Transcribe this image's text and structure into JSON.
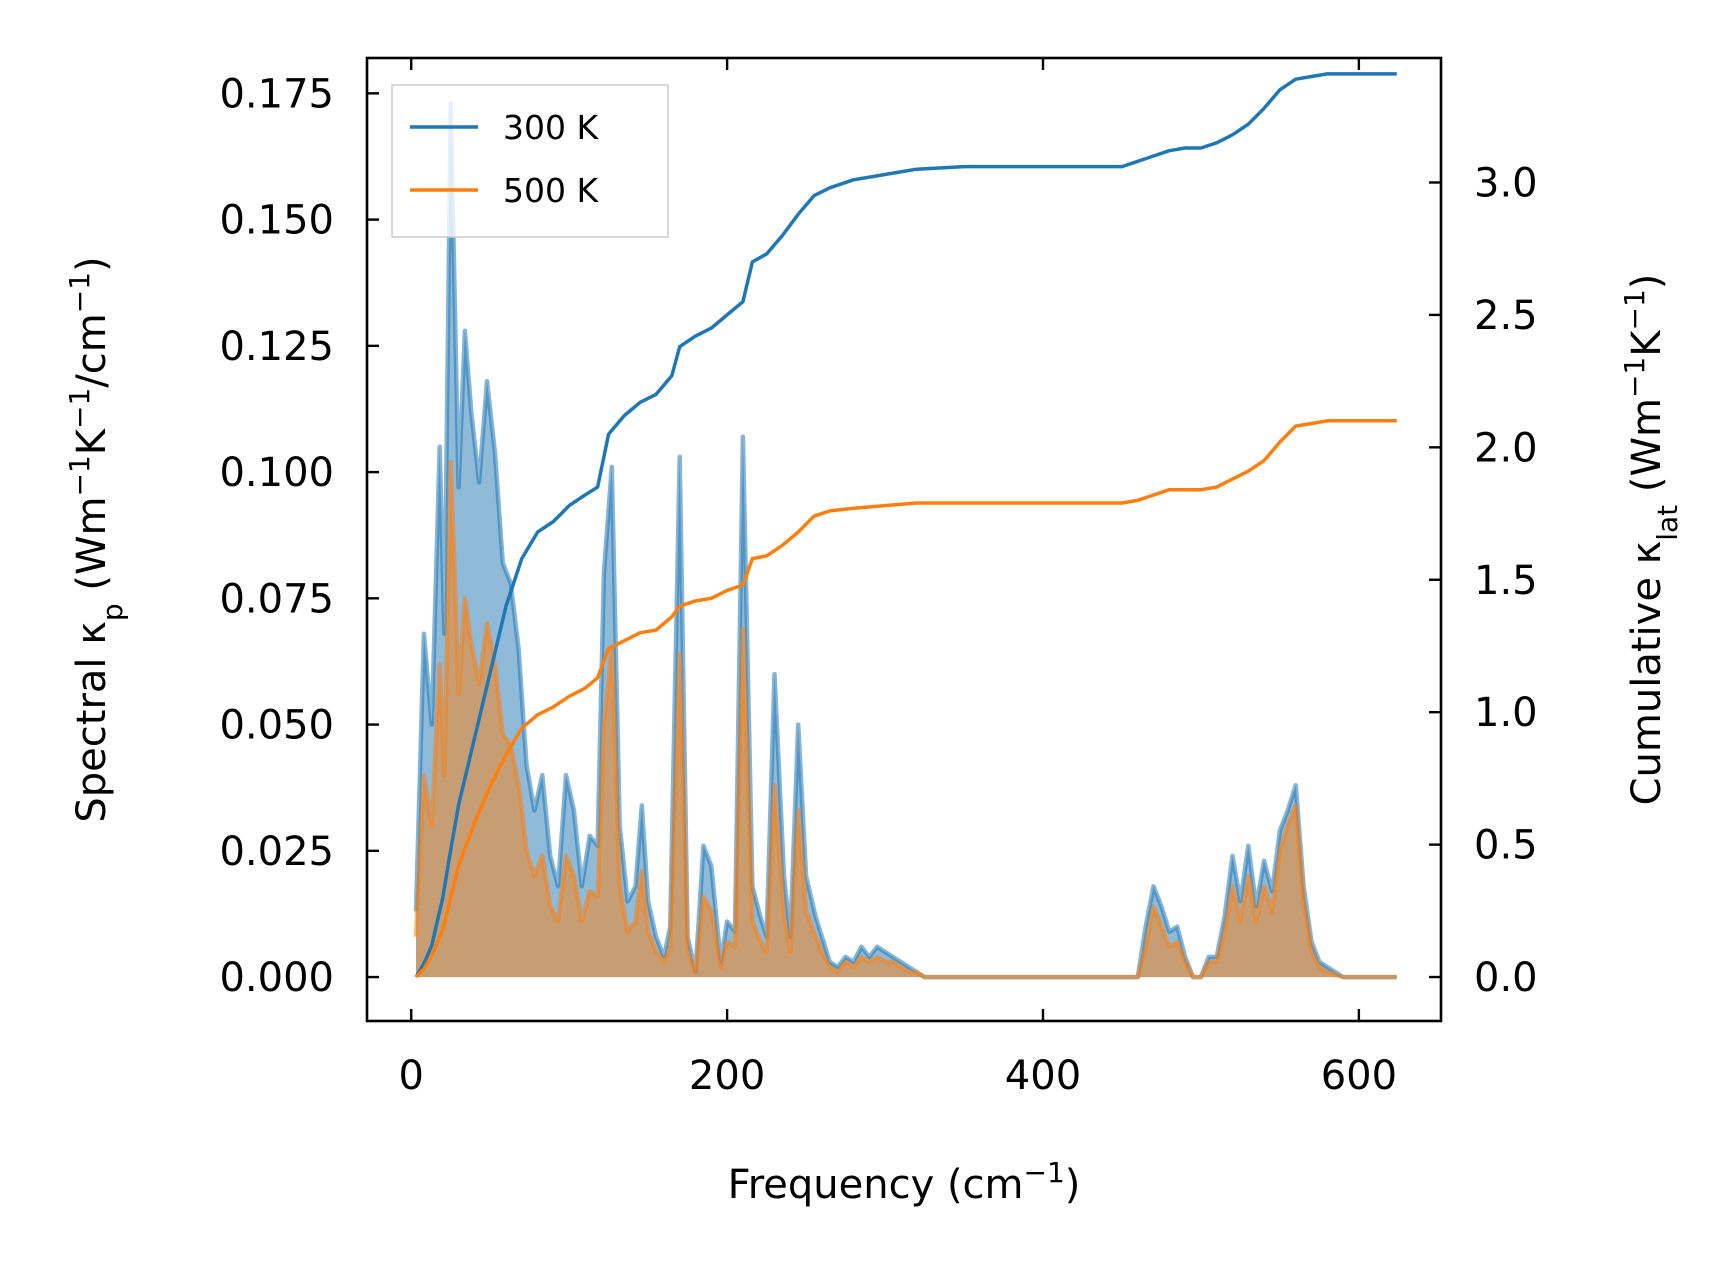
{
  "chart_data": {
    "type": "area",
    "x_axis": {
      "label": "Frequency (cm⁻¹)",
      "label_parts": [
        {
          "text": "Frequency (cm"
        },
        {
          "text": "−1",
          "sup": true
        },
        {
          "text": ")"
        }
      ],
      "range": [
        -28,
        652
      ],
      "ticks": [
        0,
        200,
        400,
        600
      ],
      "tick_labels": [
        "0",
        "200",
        "400",
        "600"
      ]
    },
    "y_left_axis": {
      "label": "Spectral κₚ (Wm⁻¹K⁻¹/cm⁻¹)",
      "label_parts": [
        {
          "text": "Spectral κ"
        },
        {
          "text": "p",
          "sub": true
        },
        {
          "text": " (Wm"
        },
        {
          "text": "−1",
          "sup": true
        },
        {
          "text": "K"
        },
        {
          "text": "−1",
          "sup": true
        },
        {
          "text": "/cm"
        },
        {
          "text": "−1",
          "sup": true
        },
        {
          "text": ")"
        }
      ],
      "range": [
        -0.0087,
        0.182
      ],
      "ticks": [
        0.0,
        0.025,
        0.05,
        0.075,
        0.1,
        0.125,
        0.15,
        0.175
      ],
      "tick_labels": [
        "0.000",
        "0.025",
        "0.050",
        "0.075",
        "0.100",
        "0.125",
        "0.150",
        "0.175"
      ]
    },
    "y_right_axis": {
      "label": "Cumulative κₗₐₜ (Wm⁻¹K⁻¹)",
      "label_parts": [
        {
          "text": "Cumulative κ"
        },
        {
          "text": "lat",
          "sub": true
        },
        {
          "text": " (Wm"
        },
        {
          "text": "−1",
          "sup": true
        },
        {
          "text": "K"
        },
        {
          "text": "−1",
          "sup": true
        },
        {
          "text": ")"
        }
      ],
      "range": [
        -0.166,
        3.47
      ],
      "ticks": [
        0.0,
        0.5,
        1.0,
        1.5,
        2.0,
        2.5,
        3.0
      ],
      "tick_labels": [
        "0.0",
        "0.5",
        "1.0",
        "1.5",
        "2.0",
        "2.5",
        "3.0"
      ]
    },
    "legend": {
      "location": "top-left",
      "entries": [
        "300 K",
        "500 K"
      ]
    },
    "series": [
      {
        "name": "300 K",
        "color": "#1f77b4",
        "fill_alpha": 0.5,
        "spectral": {
          "x": [
            3,
            8,
            13,
            18,
            21,
            25,
            30,
            34,
            38,
            43,
            48,
            53,
            58,
            63,
            68,
            73,
            78,
            83,
            88,
            93,
            98,
            103,
            108,
            113,
            118,
            122,
            127,
            132,
            137,
            142,
            146,
            150,
            155,
            160,
            164,
            170,
            175,
            180,
            185,
            190,
            196,
            200,
            205,
            210,
            216,
            221,
            225,
            230,
            236,
            240,
            245,
            250,
            256,
            260,
            265,
            270,
            275,
            280,
            285,
            290,
            295,
            300,
            305,
            310,
            315,
            320,
            325,
            330,
            400,
            450,
            460,
            465,
            470,
            475,
            480,
            485,
            490,
            495,
            500,
            505,
            510,
            515,
            520,
            525,
            530,
            535,
            540,
            545,
            550,
            555,
            560,
            565,
            570,
            575,
            580,
            590,
            600,
            624
          ],
          "y": [
            0.013,
            0.068,
            0.05,
            0.105,
            0.068,
            0.173,
            0.097,
            0.128,
            0.112,
            0.098,
            0.118,
            0.104,
            0.082,
            0.078,
            0.065,
            0.042,
            0.033,
            0.04,
            0.024,
            0.018,
            0.04,
            0.033,
            0.018,
            0.028,
            0.026,
            0.08,
            0.101,
            0.03,
            0.015,
            0.018,
            0.034,
            0.015,
            0.008,
            0.004,
            0.01,
            0.103,
            0.008,
            0.001,
            0.026,
            0.022,
            0.003,
            0.011,
            0.009,
            0.107,
            0.018,
            0.012,
            0.008,
            0.06,
            0.02,
            0.008,
            0.05,
            0.02,
            0.012,
            0.008,
            0.003,
            0.002,
            0.004,
            0.003,
            0.006,
            0.004,
            0.006,
            0.005,
            0.004,
            0.003,
            0.002,
            0.001,
            0.0,
            0.0,
            0.0,
            0.0,
            0.0,
            0.01,
            0.018,
            0.014,
            0.009,
            0.01,
            0.004,
            0.0,
            0.0,
            0.004,
            0.004,
            0.012,
            0.024,
            0.015,
            0.026,
            0.014,
            0.023,
            0.017,
            0.029,
            0.033,
            0.038,
            0.018,
            0.007,
            0.003,
            0.002,
            0.0,
            0.0,
            0.0
          ]
        },
        "cumulative": {
          "x": [
            3,
            8,
            13,
            20,
            25,
            30,
            40,
            50,
            60,
            70,
            80,
            90,
            100,
            110,
            118,
            125,
            135,
            145,
            155,
            165,
            170,
            180,
            190,
            200,
            210,
            216,
            225,
            235,
            245,
            255,
            265,
            280,
            300,
            320,
            350,
            400,
            450,
            460,
            470,
            480,
            490,
            500,
            510,
            520,
            530,
            540,
            550,
            560,
            570,
            580,
            600,
            624
          ],
          "y": [
            0.0,
            0.05,
            0.12,
            0.3,
            0.48,
            0.65,
            0.9,
            1.15,
            1.4,
            1.58,
            1.68,
            1.72,
            1.78,
            1.82,
            1.85,
            2.05,
            2.12,
            2.17,
            2.2,
            2.27,
            2.38,
            2.42,
            2.45,
            2.5,
            2.55,
            2.7,
            2.73,
            2.8,
            2.88,
            2.95,
            2.98,
            3.01,
            3.03,
            3.05,
            3.06,
            3.06,
            3.06,
            3.08,
            3.1,
            3.12,
            3.13,
            3.13,
            3.15,
            3.18,
            3.22,
            3.28,
            3.35,
            3.39,
            3.4,
            3.41,
            3.41,
            3.41
          ]
        }
      },
      {
        "name": "500 K",
        "color": "#ff7f0e",
        "fill_alpha": 0.5,
        "spectral": {
          "x": [
            3,
            8,
            13,
            18,
            21,
            25,
            30,
            34,
            38,
            43,
            48,
            53,
            58,
            63,
            68,
            73,
            78,
            83,
            88,
            93,
            98,
            103,
            108,
            113,
            118,
            122,
            127,
            132,
            137,
            142,
            146,
            150,
            155,
            160,
            164,
            170,
            175,
            180,
            185,
            190,
            196,
            200,
            205,
            210,
            216,
            221,
            225,
            230,
            236,
            240,
            245,
            250,
            256,
            260,
            265,
            270,
            275,
            280,
            285,
            290,
            295,
            300,
            305,
            310,
            315,
            320,
            325,
            330,
            400,
            450,
            460,
            465,
            470,
            475,
            480,
            485,
            490,
            495,
            500,
            505,
            510,
            515,
            520,
            525,
            530,
            535,
            540,
            545,
            550,
            555,
            560,
            565,
            570,
            575,
            580,
            590,
            600,
            624
          ],
          "y": [
            0.008,
            0.04,
            0.03,
            0.062,
            0.04,
            0.102,
            0.056,
            0.075,
            0.066,
            0.058,
            0.07,
            0.062,
            0.048,
            0.046,
            0.038,
            0.025,
            0.02,
            0.024,
            0.014,
            0.011,
            0.024,
            0.02,
            0.011,
            0.017,
            0.016,
            0.05,
            0.065,
            0.018,
            0.009,
            0.011,
            0.021,
            0.009,
            0.005,
            0.003,
            0.006,
            0.064,
            0.005,
            0.001,
            0.016,
            0.013,
            0.002,
            0.007,
            0.006,
            0.069,
            0.011,
            0.007,
            0.005,
            0.038,
            0.012,
            0.005,
            0.033,
            0.013,
            0.008,
            0.005,
            0.002,
            0.001,
            0.003,
            0.002,
            0.004,
            0.003,
            0.004,
            0.003,
            0.003,
            0.002,
            0.001,
            0.001,
            0.0,
            0.0,
            0.0,
            0.0,
            0.0,
            0.006,
            0.014,
            0.01,
            0.006,
            0.007,
            0.003,
            0.0,
            0.0,
            0.003,
            0.003,
            0.009,
            0.018,
            0.011,
            0.02,
            0.011,
            0.018,
            0.013,
            0.025,
            0.03,
            0.034,
            0.015,
            0.005,
            0.002,
            0.001,
            0.0,
            0.0,
            0.0
          ]
        },
        "cumulative": {
          "x": [
            3,
            8,
            13,
            20,
            25,
            30,
            40,
            50,
            60,
            70,
            80,
            90,
            100,
            110,
            118,
            125,
            135,
            145,
            155,
            165,
            170,
            180,
            190,
            200,
            210,
            216,
            225,
            235,
            245,
            255,
            265,
            280,
            300,
            320,
            350,
            400,
            450,
            460,
            470,
            480,
            490,
            500,
            510,
            520,
            530,
            540,
            550,
            560,
            570,
            580,
            600,
            624
          ],
          "y": [
            0.0,
            0.03,
            0.08,
            0.18,
            0.3,
            0.42,
            0.58,
            0.72,
            0.84,
            0.94,
            0.99,
            1.02,
            1.06,
            1.09,
            1.13,
            1.24,
            1.27,
            1.3,
            1.31,
            1.36,
            1.4,
            1.42,
            1.43,
            1.46,
            1.48,
            1.58,
            1.59,
            1.63,
            1.68,
            1.74,
            1.76,
            1.77,
            1.78,
            1.79,
            1.79,
            1.79,
            1.79,
            1.8,
            1.82,
            1.84,
            1.84,
            1.84,
            1.85,
            1.88,
            1.91,
            1.95,
            2.02,
            2.08,
            2.09,
            2.1,
            2.1,
            2.1
          ]
        }
      }
    ]
  }
}
